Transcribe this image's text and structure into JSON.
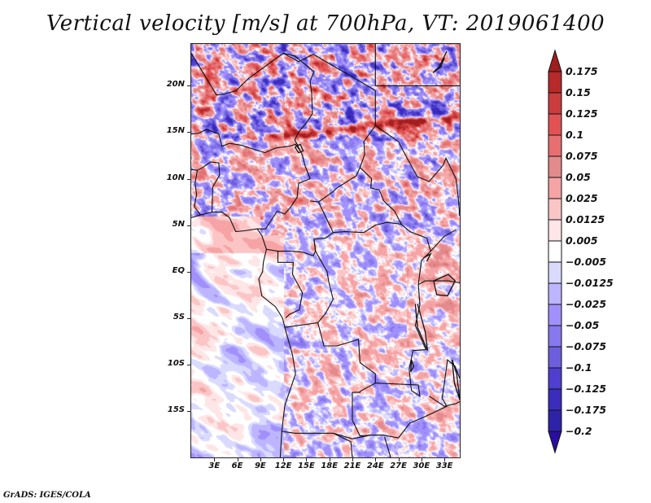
{
  "title": "Vertical velocity [m/s] at 700hPa, VT: 2019061400",
  "footer": "GrADS: IGES/COLA",
  "chart_data": {
    "type": "heatmap",
    "title": "Vertical velocity [m/s] at 700hPa, VT: 2019061400",
    "variable": "Vertical velocity",
    "units": "m/s",
    "level": "700hPa",
    "valid_time": "2019061400",
    "lon_range": [
      0,
      35
    ],
    "lat_range": [
      -20,
      24.5
    ],
    "x_ticks": [
      {
        "value": 3,
        "label": "3E"
      },
      {
        "value": 6,
        "label": "6E"
      },
      {
        "value": 9,
        "label": "9E"
      },
      {
        "value": 12,
        "label": "12E"
      },
      {
        "value": 15,
        "label": "15E"
      },
      {
        "value": 18,
        "label": "18E"
      },
      {
        "value": 21,
        "label": "21E"
      },
      {
        "value": 24,
        "label": "24E"
      },
      {
        "value": 27,
        "label": "27E"
      },
      {
        "value": 30,
        "label": "30E"
      },
      {
        "value": 33,
        "label": "33E"
      }
    ],
    "y_ticks": [
      {
        "value": 20,
        "label": "20N"
      },
      {
        "value": 15,
        "label": "15N"
      },
      {
        "value": 10,
        "label": "10N"
      },
      {
        "value": 5,
        "label": "5N"
      },
      {
        "value": 0,
        "label": "EQ"
      },
      {
        "value": -5,
        "label": "5S"
      },
      {
        "value": -10,
        "label": "10S"
      },
      {
        "value": -15,
        "label": "15S"
      }
    ],
    "colorbar": {
      "position": "right",
      "levels": [
        0.175,
        0.15,
        0.125,
        0.1,
        0.075,
        0.05,
        0.025,
        0.0125,
        0.005,
        -0.005,
        -0.0125,
        -0.025,
        -0.05,
        -0.075,
        -0.1,
        -0.125,
        -0.175,
        -0.2
      ],
      "labels": [
        "0.175",
        "0.15",
        "0.125",
        "0.1",
        "0.075",
        "0.05",
        "0.025",
        "0.0125",
        "0.005",
        "−0.005",
        "−0.0125",
        "−0.025",
        "−0.05",
        "−0.075",
        "−0.1",
        "−0.125",
        "−0.175",
        "−0.2"
      ],
      "colors_top_to_bottom": [
        "#a01e1e",
        "#b8292a",
        "#cc3c3c",
        "#e25253",
        "#e86f70",
        "#e38a8c",
        "#f5a3a4",
        "#fbc5c6",
        "#fee5e6",
        "#ffffff",
        "#dadaff",
        "#bdb5ff",
        "#a190fb",
        "#8878ee",
        "#6d5edd",
        "#4e3fd0",
        "#3b2cbe",
        "#2e22a8",
        "#2a0ea0"
      ],
      "extend": "both"
    },
    "features": [
      "Strong upward (red) band along ~15N from 14E to 35E",
      "Mixed red/blue fine-scale structure over Sahara (north of 15N)",
      "Weak negative (light blue) values over South Atlantic (southwest)",
      "Positive values over eastern DRC / Great Lakes region"
    ]
  }
}
